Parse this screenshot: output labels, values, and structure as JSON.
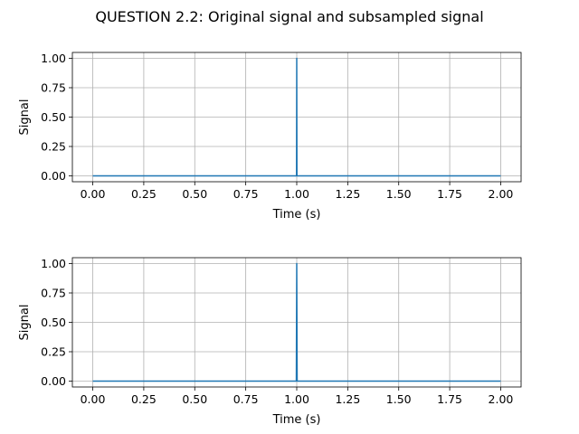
{
  "chart_data": {
    "type": "line",
    "title": "QUESTION 2.2: Original signal and subsampled signal",
    "grid": true,
    "plots": [
      {
        "xlabel": "Time (s)",
        "ylabel": "Signal",
        "xlim": [
          -0.1,
          2.1
        ],
        "ylim": [
          -0.05,
          1.05
        ],
        "xticks": [
          0.0,
          0.25,
          0.5,
          0.75,
          1.0,
          1.25,
          1.5,
          1.75,
          2.0
        ],
        "xtick_labels": [
          "0.00",
          "0.25",
          "0.50",
          "0.75",
          "1.00",
          "1.25",
          "1.50",
          "1.75",
          "2.00"
        ],
        "yticks": [
          0.0,
          0.25,
          0.5,
          0.75,
          1.0
        ],
        "ytick_labels": [
          "0.00",
          "0.25",
          "0.50",
          "0.75",
          "1.00"
        ],
        "series": [
          {
            "color": "#1f77b4",
            "x": [
              0.0,
              0.999,
              1.0,
              1.001,
              2.0
            ],
            "y": [
              0.0,
              0.0,
              1.0,
              0.0,
              0.0
            ]
          }
        ]
      },
      {
        "xlabel": "Time (s)",
        "ylabel": "Signal",
        "xlim": [
          -0.1,
          2.1
        ],
        "ylim": [
          -0.05,
          1.05
        ],
        "xticks": [
          0.0,
          0.25,
          0.5,
          0.75,
          1.0,
          1.25,
          1.5,
          1.75,
          2.0
        ],
        "xtick_labels": [
          "0.00",
          "0.25",
          "0.50",
          "0.75",
          "1.00",
          "1.25",
          "1.50",
          "1.75",
          "2.00"
        ],
        "yticks": [
          0.0,
          0.25,
          0.5,
          0.75,
          1.0
        ],
        "ytick_labels": [
          "0.00",
          "0.25",
          "0.50",
          "0.75",
          "1.00"
        ],
        "series": [
          {
            "color": "#1f77b4",
            "x": [
              0.0,
              0.998,
              1.0,
              1.002,
              2.0
            ],
            "y": [
              0.0,
              0.0,
              1.0,
              0.0,
              0.0
            ]
          }
        ]
      }
    ]
  }
}
